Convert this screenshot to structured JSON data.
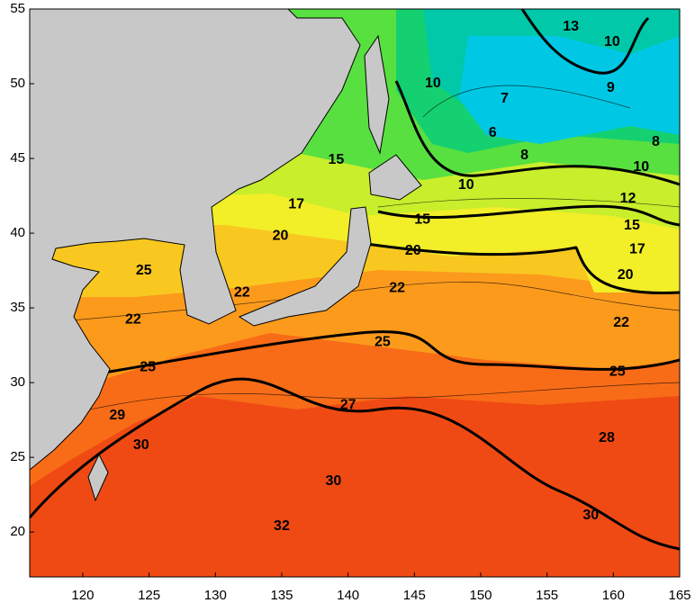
{
  "map": {
    "xlim": [
      116,
      165
    ],
    "ylim": [
      17,
      55
    ],
    "xticks": [
      120,
      125,
      130,
      135,
      140,
      145,
      150,
      155,
      160,
      165
    ],
    "yticks": [
      20,
      25,
      30,
      35,
      40,
      45,
      50,
      55
    ],
    "contour_labels": [
      {
        "value": 13,
        "lon": 156.8,
        "lat": 53.8
      },
      {
        "value": 10,
        "lon": 159.9,
        "lat": 52.8
      },
      {
        "value": 10,
        "lon": 146.4,
        "lat": 50.0
      },
      {
        "value": 9,
        "lon": 159.8,
        "lat": 49.7
      },
      {
        "value": 7,
        "lon": 151.8,
        "lat": 49.0
      },
      {
        "value": 6,
        "lon": 150.9,
        "lat": 46.7
      },
      {
        "value": 8,
        "lon": 163.2,
        "lat": 46.1
      },
      {
        "value": 8,
        "lon": 153.3,
        "lat": 45.2
      },
      {
        "value": 15,
        "lon": 139.1,
        "lat": 44.9
      },
      {
        "value": 10,
        "lon": 162.1,
        "lat": 44.4
      },
      {
        "value": 10,
        "lon": 148.9,
        "lat": 43.2
      },
      {
        "value": 17,
        "lon": 136.1,
        "lat": 41.9
      },
      {
        "value": 12,
        "lon": 161.1,
        "lat": 42.3
      },
      {
        "value": 15,
        "lon": 145.6,
        "lat": 40.9
      },
      {
        "value": 15,
        "lon": 161.4,
        "lat": 40.5
      },
      {
        "value": 20,
        "lon": 134.9,
        "lat": 39.8
      },
      {
        "value": 20,
        "lon": 144.9,
        "lat": 38.8
      },
      {
        "value": 17,
        "lon": 161.8,
        "lat": 38.9
      },
      {
        "value": 20,
        "lon": 160.9,
        "lat": 37.2
      },
      {
        "value": 25,
        "lon": 124.6,
        "lat": 37.5
      },
      {
        "value": 22,
        "lon": 143.7,
        "lat": 36.3
      },
      {
        "value": 22,
        "lon": 132.0,
        "lat": 36.0
      },
      {
        "value": 22,
        "lon": 123.8,
        "lat": 34.2
      },
      {
        "value": 22,
        "lon": 160.6,
        "lat": 34.0
      },
      {
        "value": 25,
        "lon": 142.6,
        "lat": 32.7
      },
      {
        "value": 25,
        "lon": 124.9,
        "lat": 31.0
      },
      {
        "value": 25,
        "lon": 160.3,
        "lat": 30.7
      },
      {
        "value": 27,
        "lon": 140.0,
        "lat": 28.5
      },
      {
        "value": 29,
        "lon": 122.6,
        "lat": 27.8
      },
      {
        "value": 28,
        "lon": 159.5,
        "lat": 26.3
      },
      {
        "value": 30,
        "lon": 124.4,
        "lat": 25.8
      },
      {
        "value": 30,
        "lon": 138.9,
        "lat": 23.4
      },
      {
        "value": 30,
        "lon": 158.3,
        "lat": 21.1
      },
      {
        "value": 32,
        "lon": 135.0,
        "lat": 20.4
      }
    ]
  }
}
